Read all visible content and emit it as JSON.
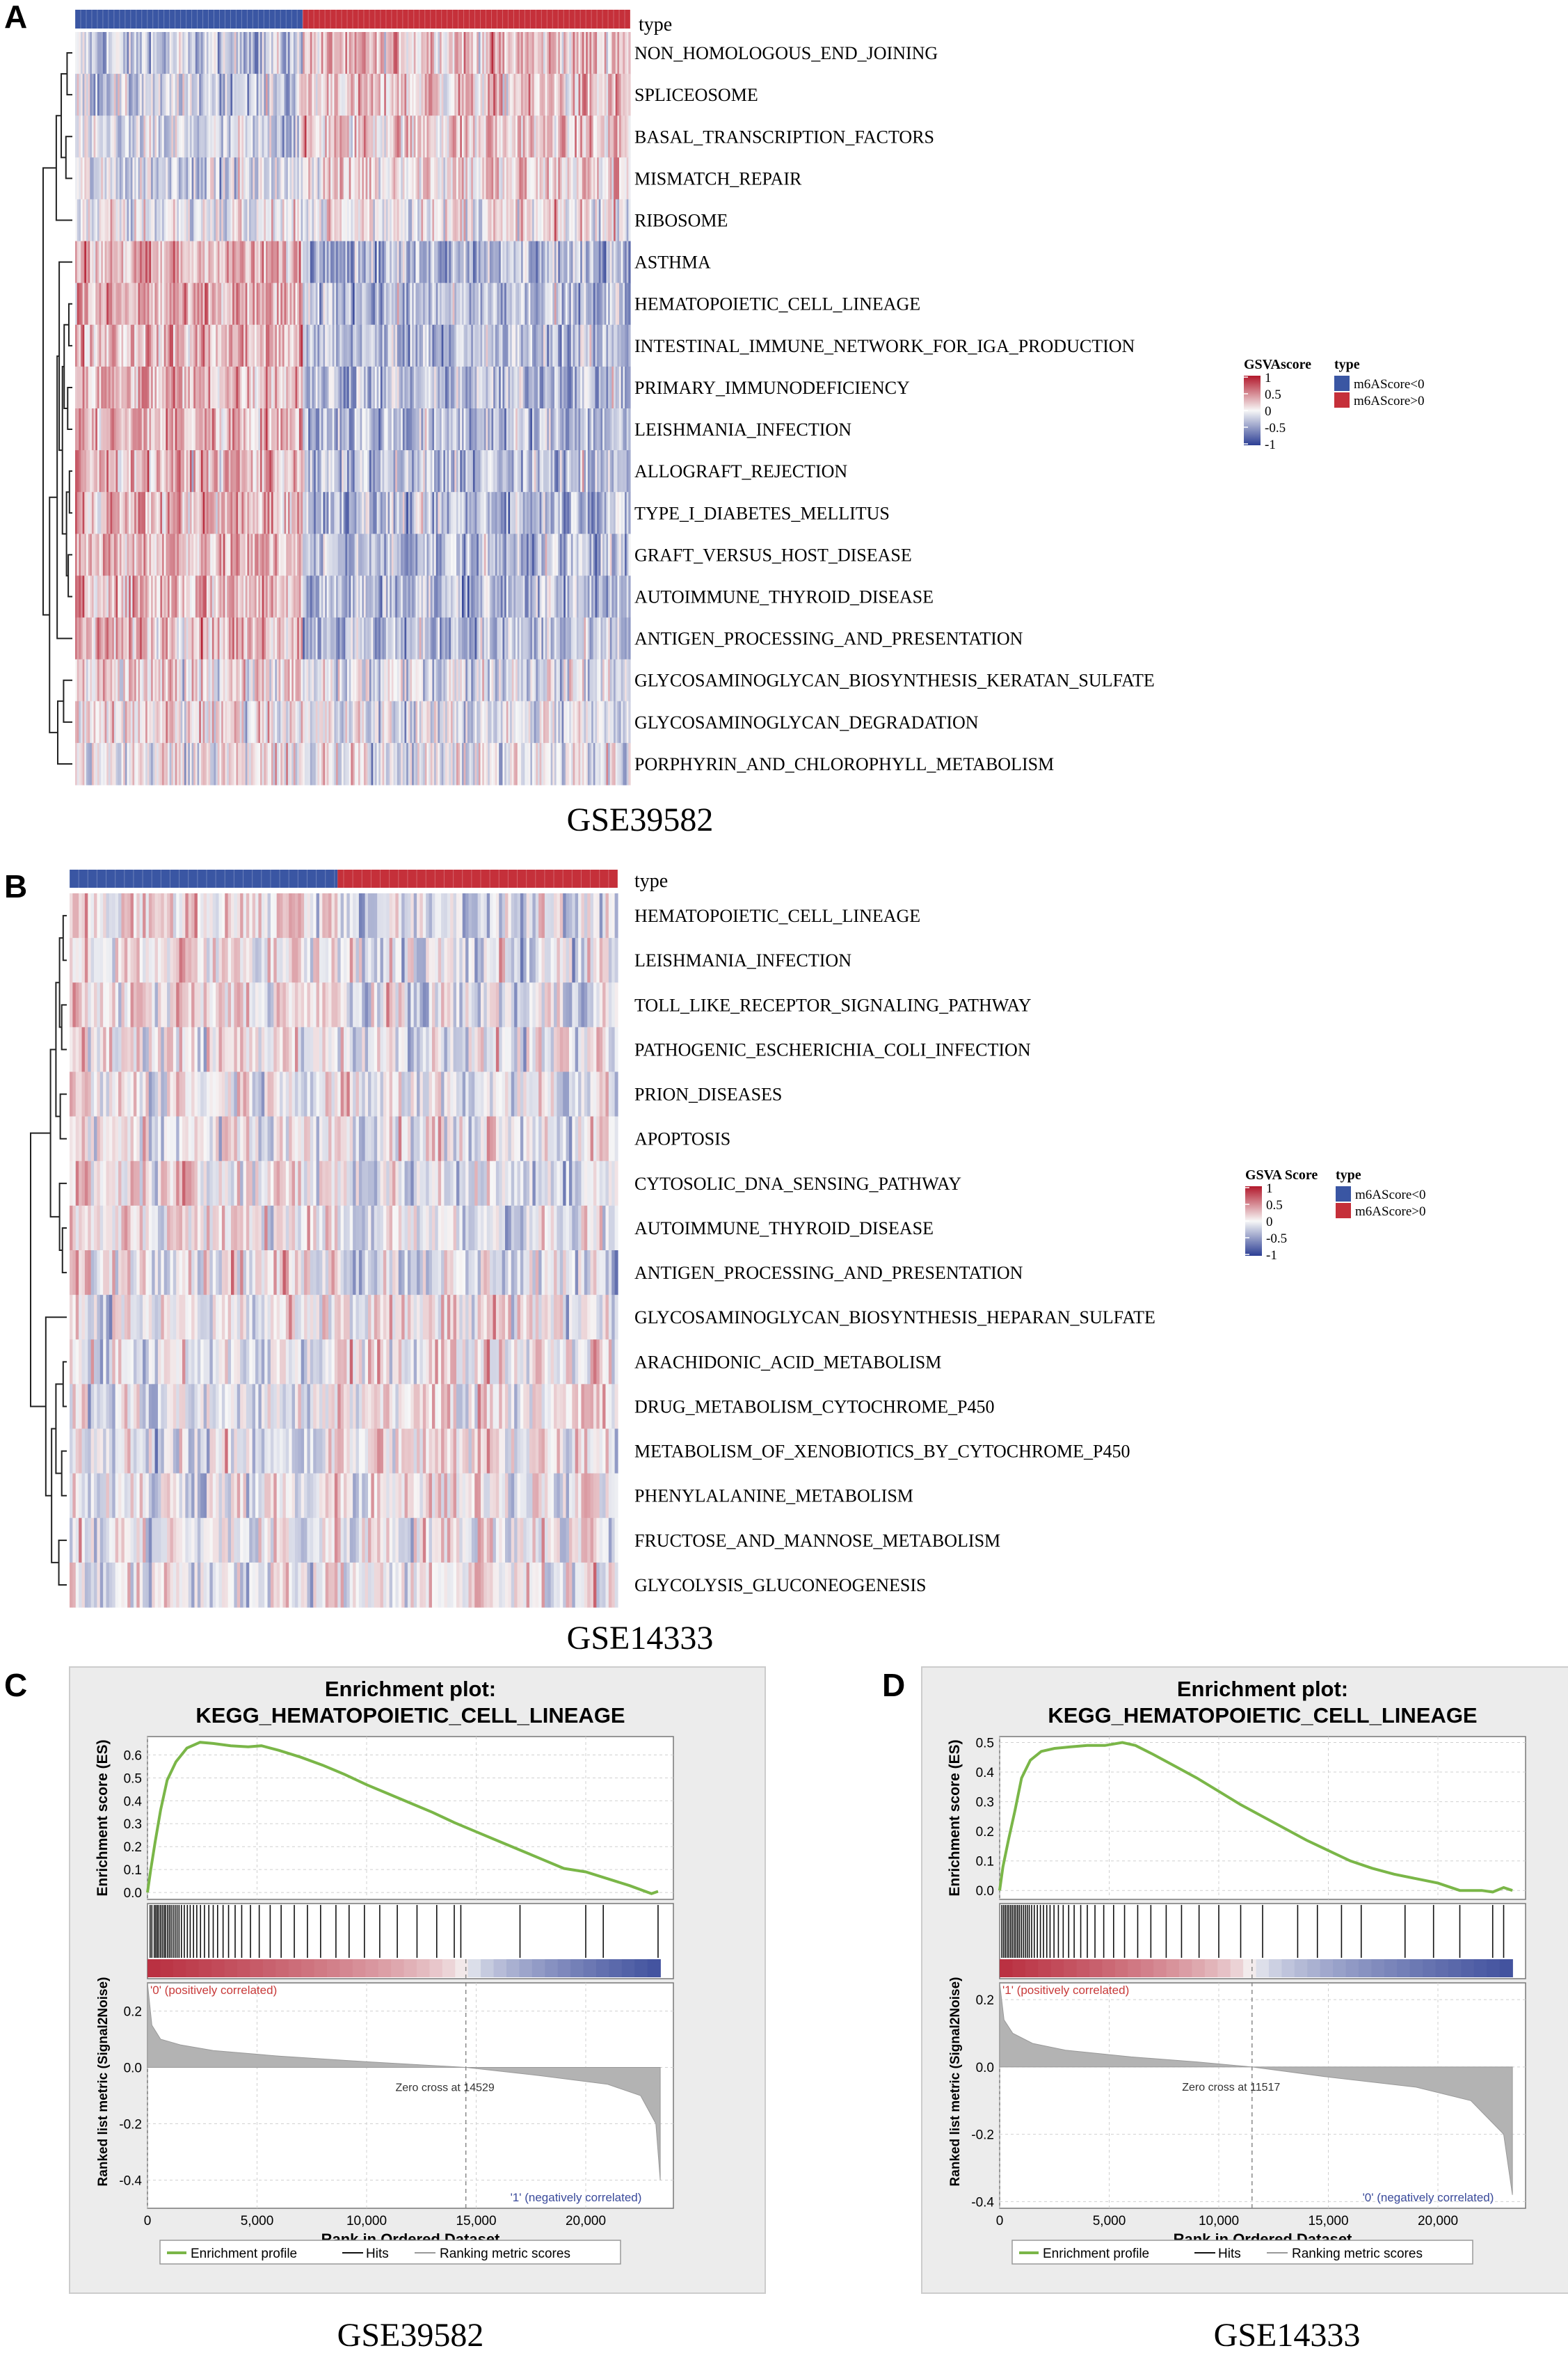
{
  "panels": [
    {
      "letter": "A",
      "dataset_label": "GSE39582",
      "type_label": "type",
      "legend": {
        "score_title": "GSVAscore",
        "score_ticks": [
          "1",
          "0.5",
          "0",
          "-0.5",
          "-1"
        ],
        "type_title": "type",
        "type_entries": [
          "m6AScore<0",
          "m6AScore>0"
        ]
      },
      "rows": [
        "NON_HOMOLOGOUS_END_JOINING",
        "SPLICEOSOME",
        "BASAL_TRANSCRIPTION_FACTORS",
        "MISMATCH_REPAIR",
        "RIBOSOME",
        "ASTHMA",
        "HEMATOPOIETIC_CELL_LINEAGE",
        "INTESTINAL_IMMUNE_NETWORK_FOR_IGA_PRODUCTION",
        "PRIMARY_IMMUNODEFICIENCY",
        "LEISHMANIA_INFECTION",
        "ALLOGRAFT_REJECTION",
        "TYPE_I_DIABETES_MELLITUS",
        "GRAFT_VERSUS_HOST_DISEASE",
        "AUTOIMMUNE_THYROID_DISEASE",
        "ANTIGEN_PROCESSING_AND_PRESENTATION",
        "GLYCOSAMINOGLYCAN_BIOSYNTHESIS_KERATAN_SULFATE",
        "GLYCOSAMINOGLYCAN_DEGRADATION",
        "PORPHYRIN_AND_CHLOROPHYLL_METABOLISM"
      ]
    },
    {
      "letter": "B",
      "dataset_label": "GSE14333",
      "type_label": "type",
      "legend": {
        "score_title": "GSVA Score",
        "score_ticks": [
          "1",
          "0.5",
          "0",
          "-0.5",
          "-1"
        ],
        "type_title": "type",
        "type_entries": [
          "m6AScore<0",
          "m6AScore>0"
        ]
      },
      "rows": [
        "HEMATOPOIETIC_CELL_LINEAGE",
        "LEISHMANIA_INFECTION",
        "TOLL_LIKE_RECEPTOR_SIGNALING_PATHWAY",
        "PATHOGENIC_ESCHERICHIA_COLI_INFECTION",
        "PRION_DISEASES",
        "APOPTOSIS",
        "CYTOSOLIC_DNA_SENSING_PATHWAY",
        "AUTOIMMUNE_THYROID_DISEASE",
        "ANTIGEN_PROCESSING_AND_PRESENTATION",
        "GLYCOSAMINOGLYCAN_BIOSYNTHESIS_HEPARAN_SULFATE",
        "ARACHIDONIC_ACID_METABOLISM",
        "DRUG_METABOLISM_CYTOCHROME_P450",
        "METABOLISM_OF_XENOBIOTICS_BY_CYTOCHROME_P450",
        "PHENYLALANINE_METABOLISM",
        "FRUCTOSE_AND_MANNOSE_METABOLISM",
        "GLYCOLYSIS_GLUCONEOGENESIS"
      ]
    },
    {
      "letter": "C",
      "dataset_label": "GSE39582",
      "title_line1": "Enrichment plot:",
      "title_line2": "KEGG_HEMATOPOIETIC_CELL_LINEAGE",
      "es_ylabel": "Enrichment score (ES)",
      "metric_ylabel": "Ranked list metric (Signal2Noise)",
      "xlabel": "Rank in Ordered Dataset",
      "pos_label": "'0' (positively correlated)",
      "neg_label": "'1' (negatively correlated)",
      "zero_cross_label": "Zero cross at 14529",
      "legend": [
        "Enrichment profile",
        "Hits",
        "Ranking metric scores"
      ]
    },
    {
      "letter": "D",
      "dataset_label": "GSE14333",
      "title_line1": "Enrichment plot:",
      "title_line2": "KEGG_HEMATOPOIETIC_CELL_LINEAGE",
      "es_ylabel": "Enrichment score (ES)",
      "metric_ylabel": "Ranked list metric (Signal2Noise)",
      "xlabel": "Rank in Ordered Dataset",
      "pos_label": "'1' (positively correlated)",
      "neg_label": "'0' (negatively correlated)",
      "zero_cross_label": "Zero cross at 11517",
      "legend": [
        "Enrichment profile",
        "Hits",
        "Ranking metric scores"
      ]
    }
  ],
  "colors": {
    "high": "#b2182b",
    "mid": "#f7f7f7",
    "low": "#2c3e94",
    "type_low": "#3a56a3",
    "type_high": "#c5303a",
    "es_line": "#7ab648",
    "metric_fill": "#b3b3b3",
    "gsea_bg": "#ececec"
  },
  "chart_data": [
    {
      "type": "heatmap",
      "panel": "A",
      "dataset": "GSE39582",
      "n_samples_approx": 566,
      "group_split_fraction": 0.41,
      "color_scale": {
        "min": -1,
        "max": 1,
        "ticks": [
          1,
          0.5,
          0,
          -0.5,
          -1
        ]
      },
      "legend_entries": [
        "m6AScore<0",
        "m6AScore>0"
      ],
      "row_mean_bias_low_group": [
        -0.25,
        -0.2,
        -0.2,
        -0.15,
        -0.05,
        0.3,
        0.3,
        0.3,
        0.3,
        0.3,
        0.3,
        0.3,
        0.3,
        0.3,
        0.3,
        0.1,
        0.1,
        0.05
      ],
      "row_mean_bias_high_group": [
        0.25,
        0.2,
        0.2,
        0.15,
        0.05,
        -0.3,
        -0.3,
        -0.3,
        -0.3,
        -0.3,
        -0.3,
        -0.3,
        -0.3,
        -0.3,
        -0.3,
        -0.1,
        -0.1,
        -0.05
      ]
    },
    {
      "type": "heatmap",
      "panel": "B",
      "dataset": "GSE14333",
      "n_samples_approx": 290,
      "group_split_fraction": 0.49,
      "color_scale": {
        "min": -1,
        "max": 1,
        "ticks": [
          1,
          0.5,
          0,
          -0.5,
          -1
        ]
      },
      "legend_entries": [
        "m6AScore<0",
        "m6AScore>0"
      ],
      "row_mean_bias_low_group": [
        0.15,
        0.1,
        0.1,
        0.05,
        0.05,
        0.0,
        0.1,
        0.1,
        0.1,
        -0.05,
        -0.1,
        -0.1,
        -0.1,
        -0.05,
        -0.05,
        -0.05
      ],
      "row_mean_bias_high_group": [
        -0.15,
        -0.1,
        -0.1,
        -0.05,
        -0.05,
        0.0,
        -0.1,
        -0.1,
        -0.1,
        0.05,
        0.1,
        0.1,
        0.1,
        0.05,
        0.05,
        0.05
      ]
    },
    {
      "type": "line",
      "panel": "C",
      "title": "Enrichment plot: KEGG_HEMATOPOIETIC_CELL_LINEAGE",
      "xlabel": "Rank in Ordered Dataset",
      "ylabel": "Enrichment score (ES)",
      "xlim": [
        0,
        24000
      ],
      "x_ticks": [
        0,
        5000,
        10000,
        15000,
        20000
      ],
      "x_tick_labels": [
        "0",
        "5,000",
        "10,000",
        "15,000",
        "20,000"
      ],
      "ylim": [
        -0.03,
        0.68
      ],
      "y_ticks": [
        0.0,
        0.1,
        0.2,
        0.3,
        0.4,
        0.5,
        0.6
      ],
      "y_tick_labels": [
        "0.0",
        "0.1",
        "0.2",
        "0.3",
        "0.4",
        "0.5",
        "0.6"
      ],
      "es_x": [
        0,
        150,
        350,
        600,
        900,
        1300,
        1800,
        2400,
        3000,
        3800,
        4600,
        5200,
        6000,
        7000,
        8000,
        9000,
        10000,
        11000,
        12000,
        13000,
        14000,
        15000,
        16000,
        17000,
        18000,
        19000,
        20000,
        21000,
        22000,
        23000,
        23300
      ],
      "es_y": [
        0.0,
        0.1,
        0.22,
        0.36,
        0.49,
        0.57,
        0.63,
        0.655,
        0.65,
        0.64,
        0.635,
        0.64,
        0.62,
        0.59,
        0.555,
        0.515,
        0.47,
        0.43,
        0.39,
        0.35,
        0.305,
        0.265,
        0.225,
        0.185,
        0.145,
        0.105,
        0.09,
        0.06,
        0.03,
        -0.005,
        0.005
      ],
      "metric_ylim": [
        -0.5,
        0.3
      ],
      "metric_ticks": [
        0.2,
        0.0,
        -0.2,
        -0.4
      ],
      "metric_tick_labels": [
        "0.2",
        "0.0",
        "-0.2",
        "-0.4"
      ],
      "metric_x": [
        0,
        200,
        600,
        1500,
        3000,
        6000,
        10000,
        14529,
        18000,
        21000,
        22500,
        23200,
        23400
      ],
      "metric_y": [
        0.3,
        0.15,
        0.1,
        0.08,
        0.06,
        0.04,
        0.02,
        0.0,
        -0.03,
        -0.06,
        -0.1,
        -0.2,
        -0.4
      ],
      "zero_cross": 14529,
      "hits": [
        120,
        200,
        310,
        380,
        450,
        520,
        600,
        680,
        760,
        830,
        920,
        1000,
        1080,
        1170,
        1260,
        1350,
        1440,
        1550,
        1680,
        1820,
        1950,
        2100,
        2250,
        2420,
        2600,
        2800,
        3000,
        3200,
        3450,
        3700,
        4000,
        4300,
        4700,
        5100,
        5600,
        6100,
        6700,
        7300,
        7900,
        8600,
        9200,
        9900,
        10600,
        11400,
        12300,
        13200,
        14000,
        14300,
        17000,
        20000,
        20800,
        23300
      ]
    },
    {
      "type": "line",
      "panel": "D",
      "title": "Enrichment plot: KEGG_HEMATOPOIETIC_CELL_LINEAGE",
      "xlabel": "Rank in Ordered Dataset",
      "ylabel": "Enrichment score (ES)",
      "xlim": [
        0,
        24000
      ],
      "x_ticks": [
        0,
        5000,
        10000,
        15000,
        20000
      ],
      "x_tick_labels": [
        "0",
        "5,000",
        "10,000",
        "15,000",
        "20,000"
      ],
      "ylim": [
        -0.03,
        0.52
      ],
      "y_ticks": [
        0.0,
        0.1,
        0.2,
        0.3,
        0.4,
        0.5
      ],
      "y_tick_labels": [
        "0.0",
        "0.1",
        "0.2",
        "0.3",
        "0.4",
        "0.5"
      ],
      "es_x": [
        0,
        150,
        400,
        700,
        1000,
        1400,
        1900,
        2500,
        3200,
        4000,
        4800,
        5600,
        6200,
        7000,
        8000,
        9000,
        10000,
        11000,
        12000,
        13000,
        14000,
        15000,
        16000,
        17000,
        18000,
        19000,
        20000,
        21000,
        22000,
        22500,
        23000,
        23400
      ],
      "es_y": [
        0.0,
        0.08,
        0.17,
        0.27,
        0.38,
        0.44,
        0.47,
        0.48,
        0.485,
        0.49,
        0.49,
        0.5,
        0.49,
        0.46,
        0.42,
        0.38,
        0.335,
        0.29,
        0.25,
        0.21,
        0.17,
        0.135,
        0.1,
        0.075,
        0.055,
        0.04,
        0.025,
        0.0,
        0.0,
        -0.005,
        0.01,
        0.0
      ],
      "metric_ylim": [
        -0.42,
        0.25
      ],
      "metric_ticks": [
        0.2,
        0.0,
        -0.2,
        -0.4
      ],
      "metric_tick_labels": [
        "0.2",
        "0.0",
        "-0.2",
        "-0.4"
      ],
      "metric_x": [
        0,
        200,
        600,
        1500,
        3000,
        6000,
        9000,
        11517,
        15000,
        19000,
        21500,
        23000,
        23400
      ],
      "metric_y": [
        0.25,
        0.14,
        0.1,
        0.07,
        0.05,
        0.03,
        0.015,
        0.0,
        -0.03,
        -0.06,
        -0.1,
        -0.2,
        -0.38
      ],
      "zero_cross": 11517,
      "hits": [
        100,
        180,
        260,
        340,
        420,
        500,
        580,
        660,
        740,
        820,
        900,
        990,
        1080,
        1170,
        1260,
        1350,
        1460,
        1580,
        1720,
        1860,
        2000,
        2150,
        2300,
        2480,
        2680,
        2900,
        3150,
        3400,
        3700,
        4000,
        4350,
        4750,
        5200,
        5700,
        6300,
        6900,
        7600,
        8300,
        9100,
        10000,
        11000,
        12000,
        13600,
        14500,
        15600,
        16500,
        18500,
        19800,
        21000,
        22500,
        23000
      ]
    }
  ]
}
